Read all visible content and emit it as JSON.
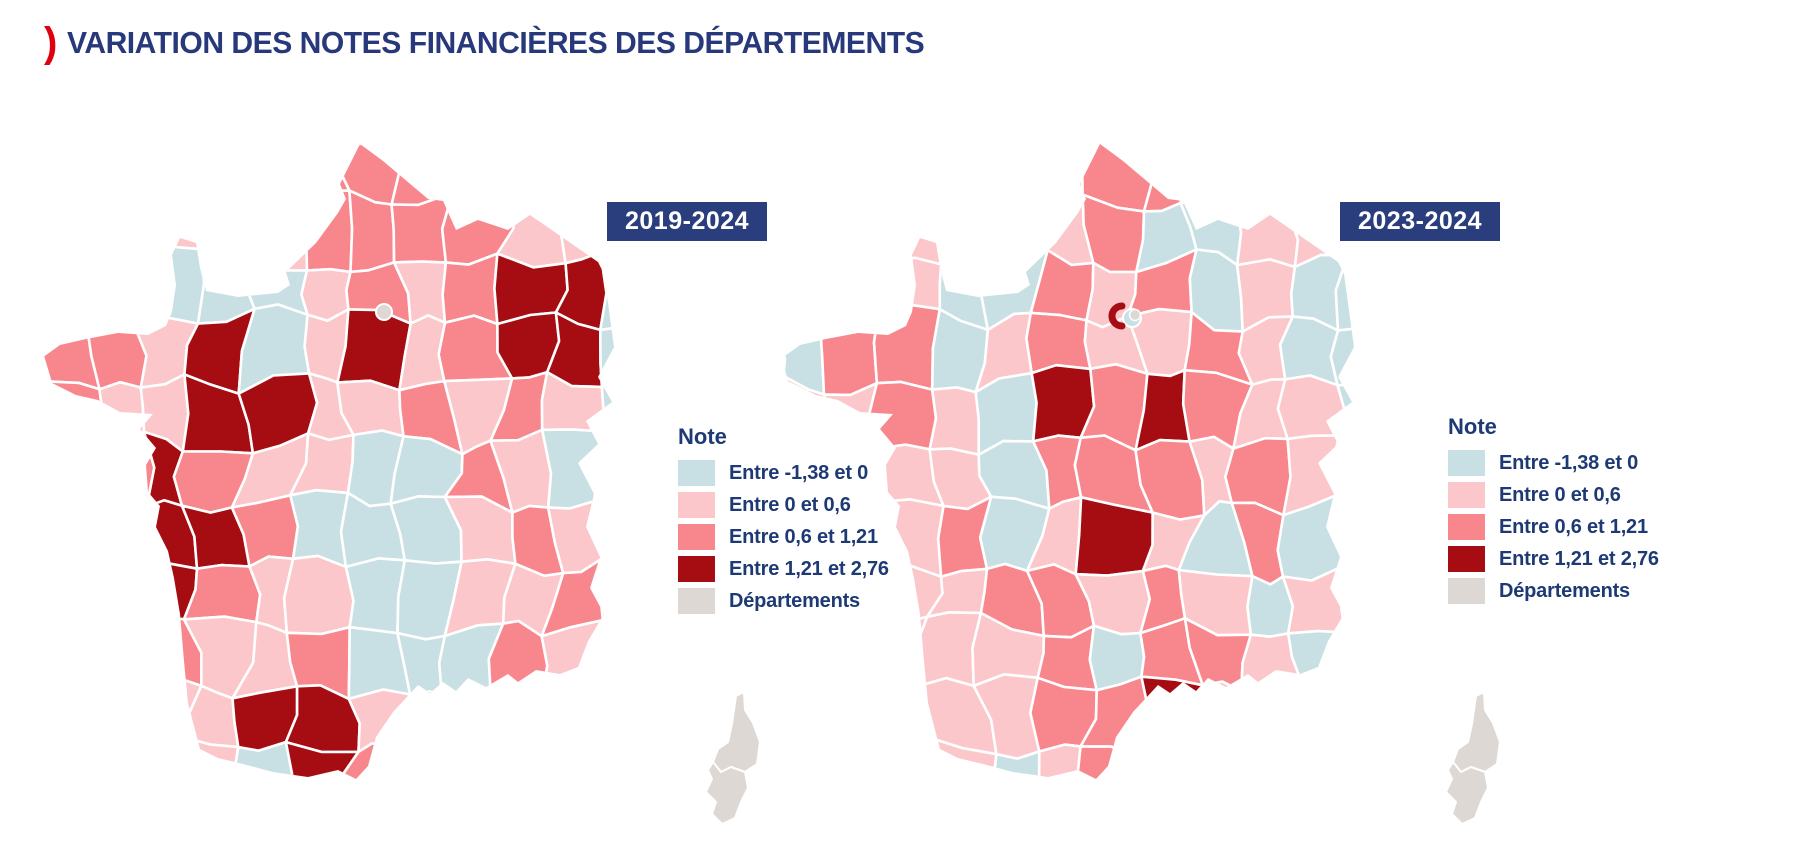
{
  "header": {
    "bullet": ")",
    "bullet_color": "#e1000f",
    "title": "VARIATION DES NOTES FINANCIÈRES DES DÉPARTEMENTS",
    "title_color": "#27397b"
  },
  "legend": {
    "title": "Note",
    "items": [
      {
        "key": "B",
        "label": "Entre -1,38 et 0",
        "color": "#c8e0e4"
      },
      {
        "key": "P",
        "label": "Entre 0 et 0,6",
        "color": "#fbc7cb"
      },
      {
        "key": "R",
        "label": "Entre 0,6 et 1,21",
        "color": "#f8878d"
      },
      {
        "key": "D",
        "label": "Entre 1,21 et 2,76",
        "color": "#a50d12"
      },
      {
        "key": "G",
        "label": "Départements",
        "color": "#ddd8d3"
      }
    ]
  },
  "maps": [
    {
      "label": "2019-2024",
      "label_bg": "#2a3e7e",
      "label_color": "#ffffff",
      "grid": [
        "PPPPPRRRPPPP",
        "PPPPPRRRRPPP",
        "BBBBBPRPRDDB",
        "RRPDBPDPRDDB",
        "RPPDDPPRPRPB",
        "PRDRPPBBRPBP",
        "PPDDRBBBPRPP",
        "PPDRPPBBPPRP",
        "PPRPPRBBBRPP",
        "PPPPDDPDPDDP",
        "PPPPBDRBPPPP"
      ]
    },
    {
      "label": "2023-2024",
      "label_bg": "#2a3e7e",
      "label_color": "#ffffff",
      "grid": [
        "PPPPPPRRPPPP",
        "PPPPRPRBBPPP",
        "BBPBBRPRBPBB",
        "BRRBPRPPRPBB",
        "PPRPBDRDRPPB",
        "PRPPBRRRPRPP",
        "PPPRBPDPBRBP",
        "PPPPRRPRPBPP",
        "PPPPPRBRRPBP",
        "PPPPPRRDPDPP",
        "PPPPBPRDPBPP"
      ]
    }
  ],
  "chart_data": {
    "type": "choropleth",
    "title": "Variation des notes financières des départements",
    "legend_title": "Note",
    "legend_position": "right of each map",
    "categories": [
      {
        "label": "Entre -1,38 et 0",
        "range": [
          -1.38,
          0
        ],
        "color": "#c8e0e4"
      },
      {
        "label": "Entre 0 et 0,6",
        "range": [
          0,
          0.6
        ],
        "color": "#fbc7cb"
      },
      {
        "label": "Entre 0,6 et 1,21",
        "range": [
          0.6,
          1.21
        ],
        "color": "#f8878d"
      },
      {
        "label": "Entre 1,21 et 2,76",
        "range": [
          1.21,
          2.76
        ],
        "color": "#a50d12"
      },
      {
        "label": "Départements",
        "range": null,
        "color": "#ddd8d3"
      }
    ],
    "maps": [
      {
        "period": "2019-2024",
        "geography": "French departments (metropolitan France, Corsica shown in grey)"
      },
      {
        "period": "2023-2024",
        "geography": "French departments (metropolitan France, Corsica shown in grey)"
      }
    ]
  }
}
